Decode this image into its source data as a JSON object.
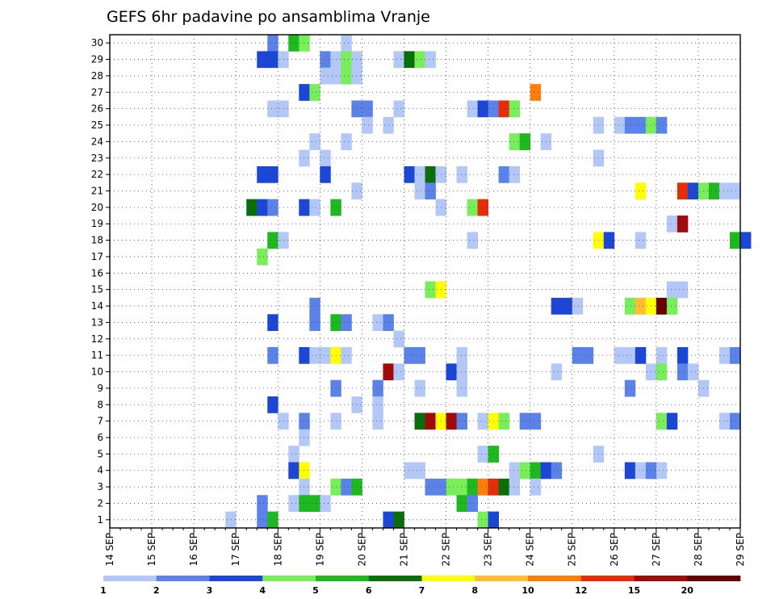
{
  "chart_data": {
    "type": "heatmap",
    "title": "GEFS 6hr padavine po ansamblima Vranje",
    "xlabel": "",
    "ylabel": "",
    "y_members": [
      1,
      2,
      3,
      4,
      5,
      6,
      7,
      8,
      9,
      10,
      11,
      12,
      13,
      14,
      15,
      16,
      17,
      18,
      19,
      20,
      21,
      22,
      23,
      24,
      25,
      26,
      27,
      28,
      29,
      30
    ],
    "x_date_labels": [
      "14 SEP",
      "15 SEP",
      "16 SEP",
      "17 SEP",
      "18 SEP",
      "19 SEP",
      "20 SEP",
      "21 SEP",
      "22 SEP",
      "23 SEP",
      "24 SEP",
      "25 SEP",
      "26 SEP",
      "27 SEP",
      "28 SEP",
      "29 SEP"
    ],
    "steps_per_day": 4,
    "grid": true,
    "legend": {
      "placement": "bottom",
      "levels": [
        "1",
        "2",
        "3",
        "4",
        "5",
        "6",
        "7",
        "8",
        "10",
        "12",
        "15",
        "20"
      ],
      "colors": [
        "#b4c8f8",
        "#5a82e8",
        "#1c46d6",
        "#78ee5a",
        "#1eb91e",
        "#0a6e0a",
        "#ffff00",
        "#ffbd32",
        "#ff7d0a",
        "#e62d0a",
        "#a00a0a",
        "#640000"
      ]
    },
    "cells": [
      {
        "member": 30,
        "step": 15,
        "cat": 1
      },
      {
        "member": 30,
        "step": 17,
        "cat": 4
      },
      {
        "member": 30,
        "step": 18,
        "cat": 3
      },
      {
        "member": 30,
        "step": 22,
        "cat": 0
      },
      {
        "member": 29,
        "step": 14,
        "cat": 2
      },
      {
        "member": 29,
        "step": 15,
        "cat": 2
      },
      {
        "member": 29,
        "step": 16,
        "cat": 0
      },
      {
        "member": 29,
        "step": 20,
        "cat": 1
      },
      {
        "member": 29,
        "step": 21,
        "cat": 0
      },
      {
        "member": 29,
        "step": 22,
        "cat": 3
      },
      {
        "member": 29,
        "step": 23,
        "cat": 0
      },
      {
        "member": 29,
        "step": 27,
        "cat": 0
      },
      {
        "member": 29,
        "step": 28,
        "cat": 5
      },
      {
        "member": 29,
        "step": 29,
        "cat": 3
      },
      {
        "member": 29,
        "step": 30,
        "cat": 0
      },
      {
        "member": 28,
        "step": 20,
        "cat": 0
      },
      {
        "member": 28,
        "step": 21,
        "cat": 0
      },
      {
        "member": 28,
        "step": 22,
        "cat": 3
      },
      {
        "member": 28,
        "step": 23,
        "cat": 0
      },
      {
        "member": 27,
        "step": 18,
        "cat": 2
      },
      {
        "member": 27,
        "step": 19,
        "cat": 3
      },
      {
        "member": 27,
        "step": 40,
        "cat": 8
      },
      {
        "member": 26,
        "step": 15,
        "cat": 0
      },
      {
        "member": 26,
        "step": 16,
        "cat": 0
      },
      {
        "member": 26,
        "step": 23,
        "cat": 1
      },
      {
        "member": 26,
        "step": 24,
        "cat": 1
      },
      {
        "member": 26,
        "step": 27,
        "cat": 0
      },
      {
        "member": 26,
        "step": 34,
        "cat": 0
      },
      {
        "member": 26,
        "step": 35,
        "cat": 2
      },
      {
        "member": 26,
        "step": 36,
        "cat": 1
      },
      {
        "member": 26,
        "step": 37,
        "cat": 9
      },
      {
        "member": 26,
        "step": 38,
        "cat": 3
      },
      {
        "member": 25,
        "step": 24,
        "cat": 0
      },
      {
        "member": 25,
        "step": 26,
        "cat": 0
      },
      {
        "member": 25,
        "step": 46,
        "cat": 0
      },
      {
        "member": 25,
        "step": 48,
        "cat": 0
      },
      {
        "member": 25,
        "step": 49,
        "cat": 1
      },
      {
        "member": 25,
        "step": 50,
        "cat": 1
      },
      {
        "member": 25,
        "step": 51,
        "cat": 3
      },
      {
        "member": 25,
        "step": 52,
        "cat": 1
      },
      {
        "member": 24,
        "step": 19,
        "cat": 0
      },
      {
        "member": 24,
        "step": 22,
        "cat": 0
      },
      {
        "member": 24,
        "step": 38,
        "cat": 3
      },
      {
        "member": 24,
        "step": 39,
        "cat": 4
      },
      {
        "member": 24,
        "step": 41,
        "cat": 0
      },
      {
        "member": 23,
        "step": 18,
        "cat": 0
      },
      {
        "member": 23,
        "step": 20,
        "cat": 0
      },
      {
        "member": 23,
        "step": 46,
        "cat": 0
      },
      {
        "member": 22,
        "step": 14,
        "cat": 2
      },
      {
        "member": 22,
        "step": 15,
        "cat": 2
      },
      {
        "member": 22,
        "step": 20,
        "cat": 2
      },
      {
        "member": 22,
        "step": 28,
        "cat": 2
      },
      {
        "member": 22,
        "step": 29,
        "cat": 0
      },
      {
        "member": 22,
        "step": 30,
        "cat": 5
      },
      {
        "member": 22,
        "step": 31,
        "cat": 0
      },
      {
        "member": 22,
        "step": 33,
        "cat": 0
      },
      {
        "member": 22,
        "step": 37,
        "cat": 1
      },
      {
        "member": 22,
        "step": 38,
        "cat": 0
      },
      {
        "member": 21,
        "step": 23,
        "cat": 0
      },
      {
        "member": 21,
        "step": 29,
        "cat": 0
      },
      {
        "member": 21,
        "step": 30,
        "cat": 1
      },
      {
        "member": 21,
        "step": 50,
        "cat": 6
      },
      {
        "member": 21,
        "step": 54,
        "cat": 9
      },
      {
        "member": 21,
        "step": 55,
        "cat": 2
      },
      {
        "member": 21,
        "step": 56,
        "cat": 3
      },
      {
        "member": 21,
        "step": 57,
        "cat": 4
      },
      {
        "member": 21,
        "step": 58,
        "cat": 0
      },
      {
        "member": 21,
        "step": 59,
        "cat": 0
      },
      {
        "member": 20,
        "step": 13,
        "cat": 5
      },
      {
        "member": 20,
        "step": 14,
        "cat": 2
      },
      {
        "member": 20,
        "step": 15,
        "cat": 1
      },
      {
        "member": 20,
        "step": 18,
        "cat": 2
      },
      {
        "member": 20,
        "step": 19,
        "cat": 0
      },
      {
        "member": 20,
        "step": 21,
        "cat": 4
      },
      {
        "member": 20,
        "step": 31,
        "cat": 0
      },
      {
        "member": 20,
        "step": 34,
        "cat": 3
      },
      {
        "member": 20,
        "step": 35,
        "cat": 9
      },
      {
        "member": 19,
        "step": 53,
        "cat": 0
      },
      {
        "member": 19,
        "step": 54,
        "cat": 10
      },
      {
        "member": 18,
        "step": 15,
        "cat": 4
      },
      {
        "member": 18,
        "step": 16,
        "cat": 0
      },
      {
        "member": 18,
        "step": 34,
        "cat": 0
      },
      {
        "member": 18,
        "step": 46,
        "cat": 6
      },
      {
        "member": 18,
        "step": 47,
        "cat": 2
      },
      {
        "member": 18,
        "step": 50,
        "cat": 0
      },
      {
        "member": 18,
        "step": 59,
        "cat": 4
      },
      {
        "member": 18,
        "step": 60,
        "cat": 2
      },
      {
        "member": 17,
        "step": 14,
        "cat": 3
      },
      {
        "member": 15,
        "step": 30,
        "cat": 3
      },
      {
        "member": 15,
        "step": 31,
        "cat": 6
      },
      {
        "member": 15,
        "step": 53,
        "cat": 0
      },
      {
        "member": 15,
        "step": 54,
        "cat": 0
      },
      {
        "member": 14,
        "step": 19,
        "cat": 1
      },
      {
        "member": 14,
        "step": 42,
        "cat": 2
      },
      {
        "member": 14,
        "step": 43,
        "cat": 2
      },
      {
        "member": 14,
        "step": 44,
        "cat": 0
      },
      {
        "member": 14,
        "step": 49,
        "cat": 3
      },
      {
        "member": 14,
        "step": 50,
        "cat": 7
      },
      {
        "member": 14,
        "step": 51,
        "cat": 6
      },
      {
        "member": 14,
        "step": 52,
        "cat": 11
      },
      {
        "member": 14,
        "step": 53,
        "cat": 3
      },
      {
        "member": 13,
        "step": 15,
        "cat": 2
      },
      {
        "member": 13,
        "step": 19,
        "cat": 1
      },
      {
        "member": 13,
        "step": 21,
        "cat": 4
      },
      {
        "member": 13,
        "step": 22,
        "cat": 1
      },
      {
        "member": 13,
        "step": 25,
        "cat": 0
      },
      {
        "member": 13,
        "step": 26,
        "cat": 1
      },
      {
        "member": 12,
        "step": 27,
        "cat": 0
      },
      {
        "member": 11,
        "step": 15,
        "cat": 1
      },
      {
        "member": 11,
        "step": 18,
        "cat": 2
      },
      {
        "member": 11,
        "step": 19,
        "cat": 0
      },
      {
        "member": 11,
        "step": 20,
        "cat": 0
      },
      {
        "member": 11,
        "step": 21,
        "cat": 6
      },
      {
        "member": 11,
        "step": 22,
        "cat": 0
      },
      {
        "member": 11,
        "step": 28,
        "cat": 1
      },
      {
        "member": 11,
        "step": 29,
        "cat": 1
      },
      {
        "member": 11,
        "step": 33,
        "cat": 0
      },
      {
        "member": 11,
        "step": 44,
        "cat": 1
      },
      {
        "member": 11,
        "step": 45,
        "cat": 1
      },
      {
        "member": 11,
        "step": 48,
        "cat": 0
      },
      {
        "member": 11,
        "step": 49,
        "cat": 0
      },
      {
        "member": 11,
        "step": 50,
        "cat": 2
      },
      {
        "member": 11,
        "step": 52,
        "cat": 0
      },
      {
        "member": 11,
        "step": 54,
        "cat": 2
      },
      {
        "member": 11,
        "step": 58,
        "cat": 0
      },
      {
        "member": 11,
        "step": 59,
        "cat": 1
      },
      {
        "member": 10,
        "step": 26,
        "cat": 10
      },
      {
        "member": 10,
        "step": 27,
        "cat": 0
      },
      {
        "member": 10,
        "step": 32,
        "cat": 2
      },
      {
        "member": 10,
        "step": 33,
        "cat": 0
      },
      {
        "member": 10,
        "step": 42,
        "cat": 0
      },
      {
        "member": 10,
        "step": 51,
        "cat": 0
      },
      {
        "member": 10,
        "step": 52,
        "cat": 3
      },
      {
        "member": 10,
        "step": 54,
        "cat": 1
      },
      {
        "member": 10,
        "step": 55,
        "cat": 0
      },
      {
        "member": 9,
        "step": 21,
        "cat": 1
      },
      {
        "member": 9,
        "step": 25,
        "cat": 1
      },
      {
        "member": 9,
        "step": 29,
        "cat": 0
      },
      {
        "member": 9,
        "step": 33,
        "cat": 0
      },
      {
        "member": 9,
        "step": 49,
        "cat": 1
      },
      {
        "member": 9,
        "step": 56,
        "cat": 0
      },
      {
        "member": 8,
        "step": 15,
        "cat": 2
      },
      {
        "member": 8,
        "step": 23,
        "cat": 0
      },
      {
        "member": 8,
        "step": 25,
        "cat": 0
      },
      {
        "member": 7,
        "step": 16,
        "cat": 0
      },
      {
        "member": 7,
        "step": 18,
        "cat": 1
      },
      {
        "member": 7,
        "step": 21,
        "cat": 0
      },
      {
        "member": 7,
        "step": 25,
        "cat": 0
      },
      {
        "member": 7,
        "step": 29,
        "cat": 5
      },
      {
        "member": 7,
        "step": 30,
        "cat": 10
      },
      {
        "member": 7,
        "step": 31,
        "cat": 6
      },
      {
        "member": 7,
        "step": 32,
        "cat": 10
      },
      {
        "member": 7,
        "step": 33,
        "cat": 1
      },
      {
        "member": 7,
        "step": 35,
        "cat": 0
      },
      {
        "member": 7,
        "step": 36,
        "cat": 6
      },
      {
        "member": 7,
        "step": 37,
        "cat": 3
      },
      {
        "member": 7,
        "step": 39,
        "cat": 1
      },
      {
        "member": 7,
        "step": 40,
        "cat": 1
      },
      {
        "member": 7,
        "step": 52,
        "cat": 3
      },
      {
        "member": 7,
        "step": 53,
        "cat": 2
      },
      {
        "member": 7,
        "step": 58,
        "cat": 0
      },
      {
        "member": 7,
        "step": 59,
        "cat": 1
      },
      {
        "member": 6,
        "step": 18,
        "cat": 0
      },
      {
        "member": 5,
        "step": 17,
        "cat": 0
      },
      {
        "member": 5,
        "step": 35,
        "cat": 0
      },
      {
        "member": 5,
        "step": 36,
        "cat": 4
      },
      {
        "member": 5,
        "step": 46,
        "cat": 0
      },
      {
        "member": 4,
        "step": 17,
        "cat": 2
      },
      {
        "member": 4,
        "step": 18,
        "cat": 6
      },
      {
        "member": 4,
        "step": 28,
        "cat": 0
      },
      {
        "member": 4,
        "step": 29,
        "cat": 0
      },
      {
        "member": 4,
        "step": 38,
        "cat": 0
      },
      {
        "member": 4,
        "step": 39,
        "cat": 3
      },
      {
        "member": 4,
        "step": 40,
        "cat": 4
      },
      {
        "member": 4,
        "step": 41,
        "cat": 2
      },
      {
        "member": 4,
        "step": 42,
        "cat": 1
      },
      {
        "member": 4,
        "step": 49,
        "cat": 2
      },
      {
        "member": 4,
        "step": 50,
        "cat": 0
      },
      {
        "member": 4,
        "step": 51,
        "cat": 1
      },
      {
        "member": 4,
        "step": 52,
        "cat": 0
      },
      {
        "member": 3,
        "step": 18,
        "cat": 0
      },
      {
        "member": 3,
        "step": 21,
        "cat": 3
      },
      {
        "member": 3,
        "step": 22,
        "cat": 1
      },
      {
        "member": 3,
        "step": 23,
        "cat": 4
      },
      {
        "member": 3,
        "step": 30,
        "cat": 1
      },
      {
        "member": 3,
        "step": 31,
        "cat": 1
      },
      {
        "member": 3,
        "step": 32,
        "cat": 3
      },
      {
        "member": 3,
        "step": 33,
        "cat": 3
      },
      {
        "member": 3,
        "step": 34,
        "cat": 4
      },
      {
        "member": 3,
        "step": 35,
        "cat": 8
      },
      {
        "member": 3,
        "step": 36,
        "cat": 9
      },
      {
        "member": 3,
        "step": 37,
        "cat": 5
      },
      {
        "member": 3,
        "step": 38,
        "cat": 0
      },
      {
        "member": 3,
        "step": 40,
        "cat": 0
      },
      {
        "member": 2,
        "step": 14,
        "cat": 1
      },
      {
        "member": 2,
        "step": 17,
        "cat": 0
      },
      {
        "member": 2,
        "step": 18,
        "cat": 4
      },
      {
        "member": 2,
        "step": 19,
        "cat": 4
      },
      {
        "member": 2,
        "step": 20,
        "cat": 0
      },
      {
        "member": 2,
        "step": 33,
        "cat": 4
      },
      {
        "member": 2,
        "step": 34,
        "cat": 1
      },
      {
        "member": 1,
        "step": 11,
        "cat": 0
      },
      {
        "member": 1,
        "step": 14,
        "cat": 1
      },
      {
        "member": 1,
        "step": 15,
        "cat": 4
      },
      {
        "member": 1,
        "step": 26,
        "cat": 2
      },
      {
        "member": 1,
        "step": 27,
        "cat": 5
      },
      {
        "member": 1,
        "step": 35,
        "cat": 3
      },
      {
        "member": 1,
        "step": 36,
        "cat": 2
      }
    ]
  }
}
